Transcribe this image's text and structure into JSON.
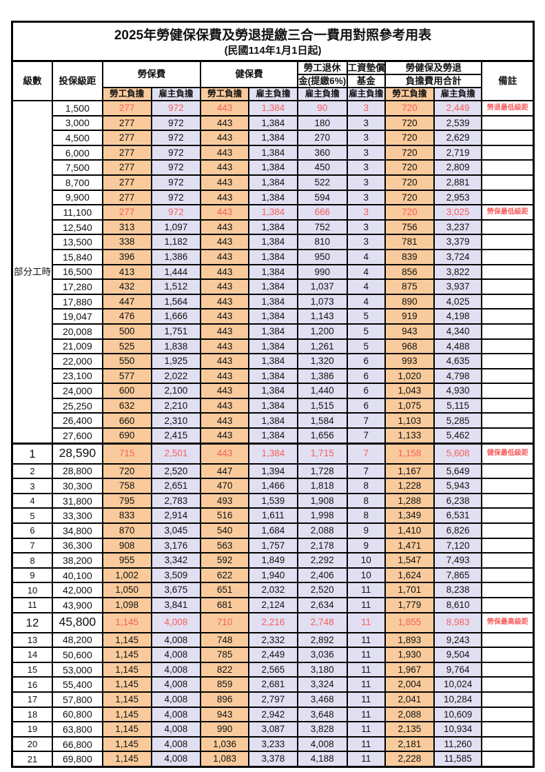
{
  "title": "2025年勞健保保費及勞退提繳三合一費用對照參考用表",
  "subtitle": "(民國114年1月1日起)",
  "header": {
    "level": "級數",
    "bracket": "投保級距",
    "labor_insurance": "勞保費",
    "health_insurance": "健保費",
    "pension_line1": "勞工退休",
    "pension_line2": "金(提繳6%)",
    "wage_fund_line1": "工資墊償",
    "wage_fund_line2": "基金",
    "total_line1": "勞健保及勞退",
    "total_line2": "負擔費用合計",
    "remark": "備註",
    "employee": "勞工負擔",
    "employer": "雇主負擔"
  },
  "part_time_label": "部分工時",
  "part_time_count": 23,
  "colors": {
    "employee_bg": "#F9CB9C",
    "employer_bg": "#E1E0F2",
    "highlight_text": "#F75D5D"
  },
  "rows": [
    {
      "lv": "",
      "br": "1,500",
      "v": [
        "277",
        "972",
        "443",
        "1,384",
        "90",
        "3",
        "720",
        "2,449"
      ],
      "rm": "勞退最低級距",
      "red": true
    },
    {
      "lv": "",
      "br": "3,000",
      "v": [
        "277",
        "972",
        "443",
        "1,384",
        "180",
        "3",
        "720",
        "2,539"
      ]
    },
    {
      "lv": "",
      "br": "4,500",
      "v": [
        "277",
        "972",
        "443",
        "1,384",
        "270",
        "3",
        "720",
        "2,629"
      ]
    },
    {
      "lv": "",
      "br": "6,000",
      "v": [
        "277",
        "972",
        "443",
        "1,384",
        "360",
        "3",
        "720",
        "2,719"
      ]
    },
    {
      "lv": "",
      "br": "7,500",
      "v": [
        "277",
        "972",
        "443",
        "1,384",
        "450",
        "3",
        "720",
        "2,809"
      ]
    },
    {
      "lv": "",
      "br": "8,700",
      "v": [
        "277",
        "972",
        "443",
        "1,384",
        "522",
        "3",
        "720",
        "2,881"
      ]
    },
    {
      "lv": "",
      "br": "9,900",
      "v": [
        "277",
        "972",
        "443",
        "1,384",
        "594",
        "3",
        "720",
        "2,953"
      ]
    },
    {
      "lv": "",
      "br": "11,100",
      "v": [
        "277",
        "972",
        "443",
        "1,384",
        "666",
        "3",
        "720",
        "3,025"
      ],
      "rm": "勞保最低級距",
      "red": true
    },
    {
      "lv": "",
      "br": "12,540",
      "v": [
        "313",
        "1,097",
        "443",
        "1,384",
        "752",
        "3",
        "756",
        "3,237"
      ]
    },
    {
      "lv": "",
      "br": "13,500",
      "v": [
        "338",
        "1,182",
        "443",
        "1,384",
        "810",
        "3",
        "781",
        "3,379"
      ]
    },
    {
      "lv": "",
      "br": "15,840",
      "v": [
        "396",
        "1,386",
        "443",
        "1,384",
        "950",
        "4",
        "839",
        "3,724"
      ]
    },
    {
      "lv": "",
      "br": "16,500",
      "v": [
        "413",
        "1,444",
        "443",
        "1,384",
        "990",
        "4",
        "856",
        "3,822"
      ]
    },
    {
      "lv": "",
      "br": "17,280",
      "v": [
        "432",
        "1,512",
        "443",
        "1,384",
        "1,037",
        "4",
        "875",
        "3,937"
      ]
    },
    {
      "lv": "",
      "br": "17,880",
      "v": [
        "447",
        "1,564",
        "443",
        "1,384",
        "1,073",
        "4",
        "890",
        "4,025"
      ]
    },
    {
      "lv": "",
      "br": "19,047",
      "v": [
        "476",
        "1,666",
        "443",
        "1,384",
        "1,143",
        "5",
        "919",
        "4,198"
      ]
    },
    {
      "lv": "",
      "br": "20,008",
      "v": [
        "500",
        "1,751",
        "443",
        "1,384",
        "1,200",
        "5",
        "943",
        "4,340"
      ]
    },
    {
      "lv": "",
      "br": "21,009",
      "v": [
        "525",
        "1,838",
        "443",
        "1,384",
        "1,261",
        "5",
        "968",
        "4,488"
      ]
    },
    {
      "lv": "",
      "br": "22,000",
      "v": [
        "550",
        "1,925",
        "443",
        "1,384",
        "1,320",
        "6",
        "993",
        "4,635"
      ]
    },
    {
      "lv": "",
      "br": "23,100",
      "v": [
        "577",
        "2,022",
        "443",
        "1,384",
        "1,386",
        "6",
        "1,020",
        "4,798"
      ]
    },
    {
      "lv": "",
      "br": "24,000",
      "v": [
        "600",
        "2,100",
        "443",
        "1,384",
        "1,440",
        "6",
        "1,043",
        "4,930"
      ]
    },
    {
      "lv": "",
      "br": "25,250",
      "v": [
        "632",
        "2,210",
        "443",
        "1,384",
        "1,515",
        "6",
        "1,075",
        "5,115"
      ]
    },
    {
      "lv": "",
      "br": "26,400",
      "v": [
        "660",
        "2,310",
        "443",
        "1,384",
        "1,584",
        "7",
        "1,103",
        "5,285"
      ]
    },
    {
      "lv": "",
      "br": "27,600",
      "v": [
        "690",
        "2,415",
        "443",
        "1,384",
        "1,656",
        "7",
        "1,133",
        "5,462"
      ]
    },
    {
      "lv": "1",
      "br": "28,590",
      "v": [
        "715",
        "2,501",
        "443",
        "1,384",
        "1,715",
        "7",
        "1,158",
        "5,608"
      ],
      "rm": "健保最低級距",
      "red": true,
      "big": true
    },
    {
      "lv": "2",
      "br": "28,800",
      "v": [
        "720",
        "2,520",
        "447",
        "1,394",
        "1,728",
        "7",
        "1,167",
        "5,649"
      ]
    },
    {
      "lv": "3",
      "br": "30,300",
      "v": [
        "758",
        "2,651",
        "470",
        "1,466",
        "1,818",
        "8",
        "1,228",
        "5,943"
      ]
    },
    {
      "lv": "4",
      "br": "31,800",
      "v": [
        "795",
        "2,783",
        "493",
        "1,539",
        "1,908",
        "8",
        "1,288",
        "6,238"
      ]
    },
    {
      "lv": "5",
      "br": "33,300",
      "v": [
        "833",
        "2,914",
        "516",
        "1,611",
        "1,998",
        "8",
        "1,349",
        "6,531"
      ]
    },
    {
      "lv": "6",
      "br": "34,800",
      "v": [
        "870",
        "3,045",
        "540",
        "1,684",
        "2,088",
        "9",
        "1,410",
        "6,826"
      ]
    },
    {
      "lv": "7",
      "br": "36,300",
      "v": [
        "908",
        "3,176",
        "563",
        "1,757",
        "2,178",
        "9",
        "1,471",
        "7,120"
      ]
    },
    {
      "lv": "8",
      "br": "38,200",
      "v": [
        "955",
        "3,342",
        "592",
        "1,849",
        "2,292",
        "10",
        "1,547",
        "7,493"
      ]
    },
    {
      "lv": "9",
      "br": "40,100",
      "v": [
        "1,002",
        "3,509",
        "622",
        "1,940",
        "2,406",
        "10",
        "1,624",
        "7,865"
      ]
    },
    {
      "lv": "10",
      "br": "42,000",
      "v": [
        "1,050",
        "3,675",
        "651",
        "2,032",
        "2,520",
        "11",
        "1,701",
        "8,238"
      ]
    },
    {
      "lv": "11",
      "br": "43,900",
      "v": [
        "1,098",
        "3,841",
        "681",
        "2,124",
        "2,634",
        "11",
        "1,779",
        "8,610"
      ]
    },
    {
      "lv": "12",
      "br": "45,800",
      "v": [
        "1,145",
        "4,008",
        "710",
        "2,216",
        "2,748",
        "11",
        "1,855",
        "8,983"
      ],
      "rm": "勞保最高級距",
      "red": true,
      "big": true
    },
    {
      "lv": "13",
      "br": "48,200",
      "v": [
        "1,145",
        "4,008",
        "748",
        "2,332",
        "2,892",
        "11",
        "1,893",
        "9,243"
      ]
    },
    {
      "lv": "14",
      "br": "50,600",
      "v": [
        "1,145",
        "4,008",
        "785",
        "2,449",
        "3,036",
        "11",
        "1,930",
        "9,504"
      ]
    },
    {
      "lv": "15",
      "br": "53,000",
      "v": [
        "1,145",
        "4,008",
        "822",
        "2,565",
        "3,180",
        "11",
        "1,967",
        "9,764"
      ]
    },
    {
      "lv": "16",
      "br": "55,400",
      "v": [
        "1,145",
        "4,008",
        "859",
        "2,681",
        "3,324",
        "11",
        "2,004",
        "10,024"
      ]
    },
    {
      "lv": "17",
      "br": "57,800",
      "v": [
        "1,145",
        "4,008",
        "896",
        "2,797",
        "3,468",
        "11",
        "2,041",
        "10,284"
      ]
    },
    {
      "lv": "18",
      "br": "60,800",
      "v": [
        "1,145",
        "4,008",
        "943",
        "2,942",
        "3,648",
        "11",
        "2,088",
        "10,609"
      ]
    },
    {
      "lv": "19",
      "br": "63,800",
      "v": [
        "1,145",
        "4,008",
        "990",
        "3,087",
        "3,828",
        "11",
        "2,135",
        "10,934"
      ]
    },
    {
      "lv": "20",
      "br": "66,800",
      "v": [
        "1,145",
        "4,008",
        "1,036",
        "3,233",
        "4,008",
        "11",
        "2,181",
        "11,260"
      ]
    },
    {
      "lv": "21",
      "br": "69,800",
      "v": [
        "1,145",
        "4,008",
        "1,083",
        "3,378",
        "4,188",
        "11",
        "2,228",
        "11,585"
      ]
    }
  ]
}
